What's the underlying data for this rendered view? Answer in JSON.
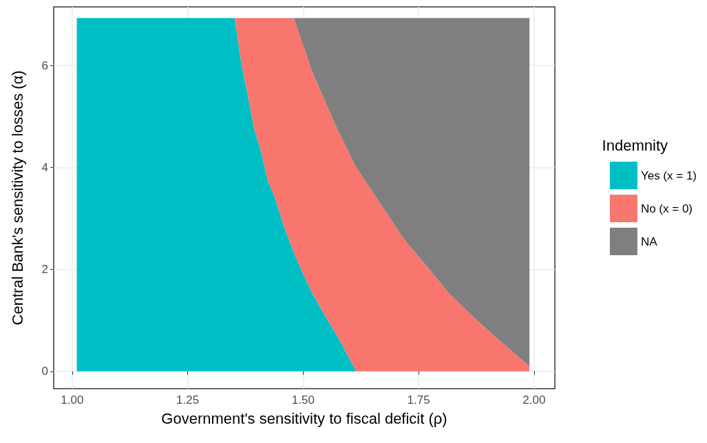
{
  "chart_data": {
    "type": "area",
    "stacked": true,
    "xlabel": "Government's sensitivity to fiscal deficit (ρ)",
    "ylabel": "Central Bank's sensitivity to losses (α)",
    "legend_title": "Indemnity",
    "legend": "right",
    "grid": true,
    "x": [
      1.01,
      1.352,
      1.365,
      1.38,
      1.394,
      1.409,
      1.424,
      1.439,
      1.459,
      1.48,
      1.499,
      1.519,
      1.548,
      1.569,
      1.578,
      1.615,
      1.668,
      1.718,
      1.768,
      1.817,
      1.867,
      1.917,
      1.99
    ],
    "series": [
      {
        "name": "Yes (x = 1)",
        "color": "#00bfc4",
        "values": [
          6.93,
          6.93,
          6.11,
          5.43,
          4.76,
          4.31,
          3.73,
          3.41,
          2.83,
          2.33,
          1.93,
          1.55,
          1.08,
          0.77,
          0.63,
          0,
          null,
          null,
          null,
          null,
          null,
          null,
          null
        ]
      },
      {
        "name": "No (x = 0)",
        "color": "#f8766d",
        "values": [
          null,
          0,
          0.82,
          1.5,
          2.17,
          2.62,
          3.2,
          3.52,
          4.1,
          4.6,
          4.49,
          4.34,
          4.21,
          4.08,
          4.05,
          4.0,
          3.28,
          2.6,
          2.06,
          1.52,
          1.08,
          0.67,
          0.1
        ]
      },
      {
        "name": "NA",
        "color": "#7f7f7f",
        "values": [
          null,
          null,
          null,
          null,
          null,
          null,
          null,
          null,
          null,
          0,
          0.51,
          1.04,
          1.64,
          2.08,
          2.25,
          2.93,
          3.65,
          4.33,
          4.87,
          5.41,
          5.85,
          6.26,
          6.83
        ]
      }
    ],
    "xlim": [
      0.96,
      2.045
    ],
    "xticks": [
      {
        "value": 1,
        "label": "1.00"
      },
      {
        "value": 1.25,
        "label": "1.25"
      },
      {
        "value": 1.5,
        "label": "1.50"
      },
      {
        "value": 1.75,
        "label": "1.75"
      },
      {
        "value": 2,
        "label": "2.00"
      }
    ],
    "ylim": [
      -0.34,
      7.15
    ],
    "yticks": [
      0,
      2,
      4,
      6
    ]
  }
}
